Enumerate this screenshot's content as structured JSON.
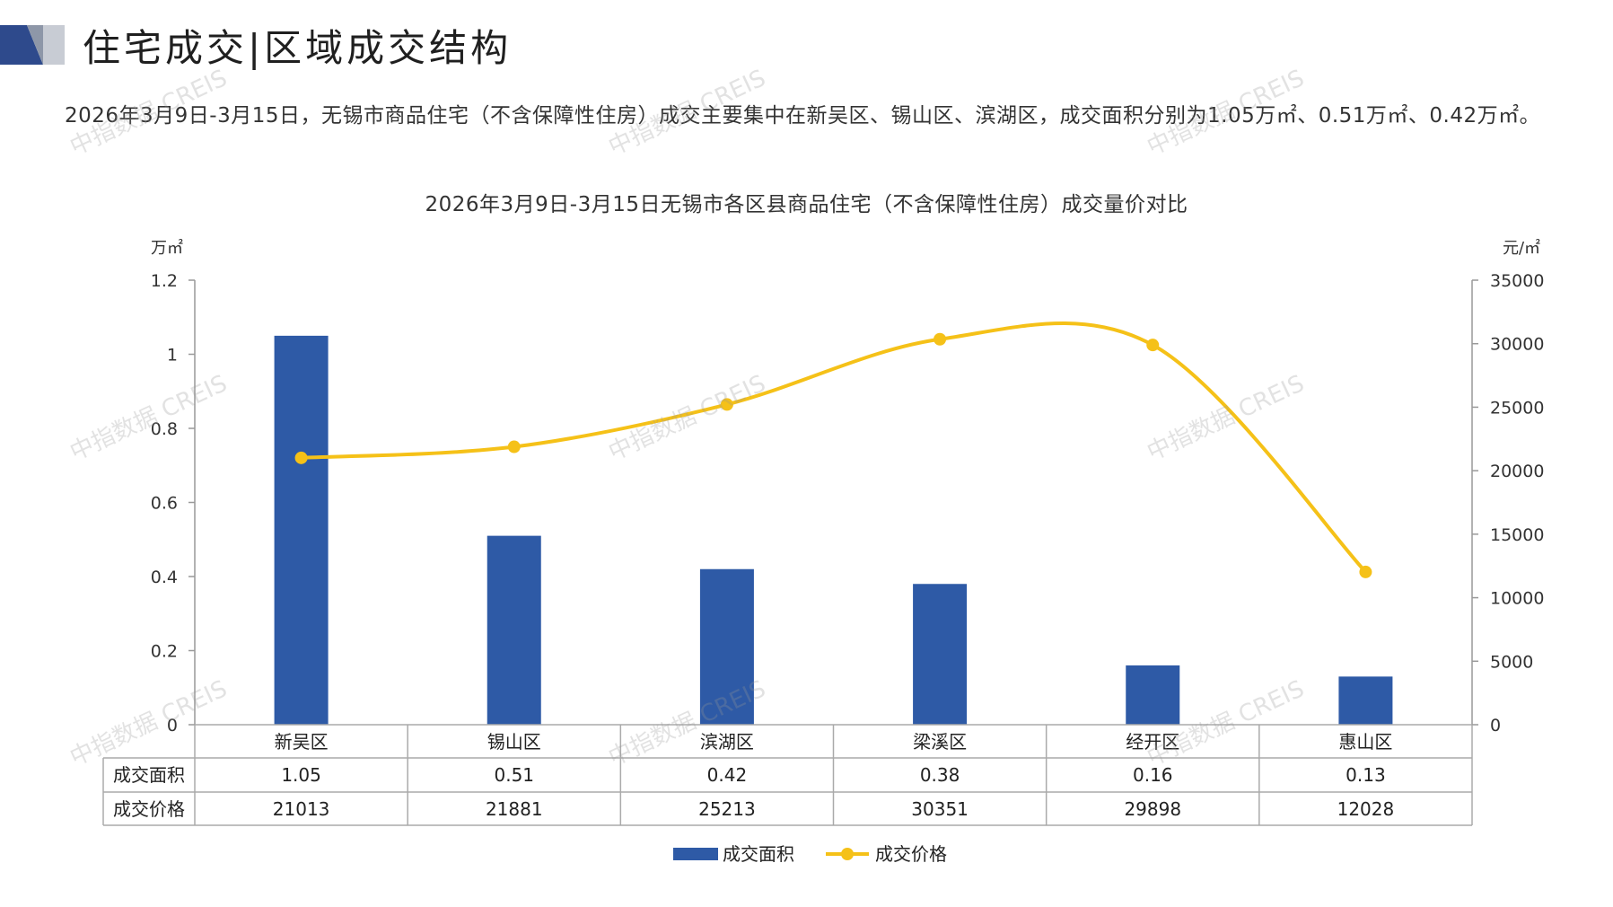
{
  "header": {
    "title": "住宅成交|区域成交结构",
    "summary": "2026年3月9日-3月15日，无锡市商品住宅（不含保障性住房）成交主要集中在新吴区、锡山区、滨湖区，成交面积分别为1.05万㎡、0.51万㎡、0.42万㎡。",
    "watermark": "中指数据 CREIS"
  },
  "colors": {
    "bar": "#2e5aa6",
    "line": "#f5c118",
    "axis": "#999999",
    "logo_dark": "#2e4a8c",
    "logo_light": "#c8ccd4"
  },
  "chart_data": {
    "type": "bar",
    "title": "2026年3月9日-3月15日无锡市各区县商品住宅（不含保障性住房）成交量价对比",
    "categories": [
      "新吴区",
      "锡山区",
      "滨湖区",
      "梁溪区",
      "经开区",
      "惠山区"
    ],
    "series": [
      {
        "name": "成交面积",
        "type": "bar",
        "axis": "left",
        "values": [
          1.05,
          0.51,
          0.42,
          0.38,
          0.16,
          0.13
        ],
        "labels": [
          "1.05",
          "0.51",
          "0.42",
          "0.38",
          "0.16",
          "0.13"
        ]
      },
      {
        "name": "成交价格",
        "type": "line",
        "axis": "right",
        "values": [
          21013,
          21881,
          25213,
          30351,
          29898,
          12028
        ],
        "labels": [
          "21013",
          "21881",
          "25213",
          "30351",
          "29898",
          "12028"
        ]
      }
    ],
    "y_left": {
      "unit": "万㎡",
      "min": 0,
      "max": 1.2,
      "ticks": [
        "0",
        "0.2",
        "0.4",
        "0.6",
        "0.8",
        "1",
        "1.2"
      ]
    },
    "y_right": {
      "unit": "元/㎡",
      "min": 0,
      "max": 35000,
      "ticks": [
        "0",
        "5000",
        "10000",
        "15000",
        "20000",
        "25000",
        "30000",
        "35000"
      ]
    },
    "legend": "bottom",
    "data_table": true
  }
}
